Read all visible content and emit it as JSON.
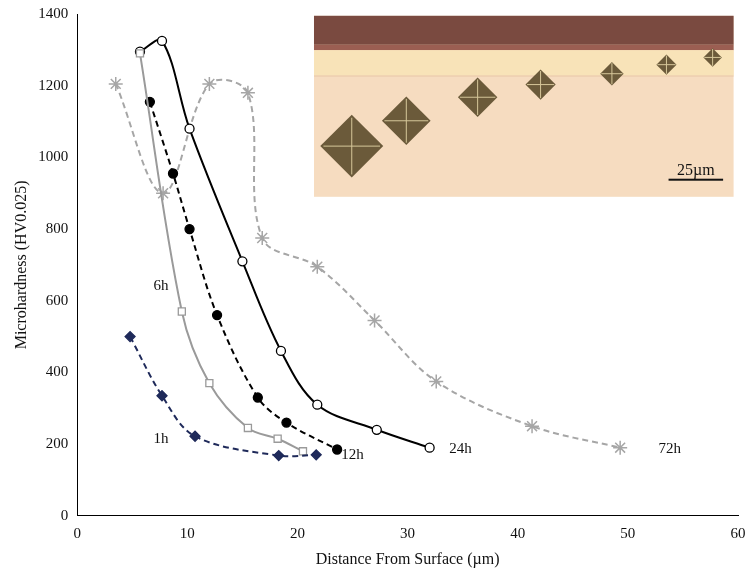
{
  "chart_data": {
    "type": "line",
    "x_label": "Distance From Surface (µm)",
    "y_label": "Microhardness (HV0.025)",
    "xlim": [
      0,
      60
    ],
    "xticks": [
      0,
      10,
      20,
      30,
      40,
      50,
      60
    ],
    "ylim": [
      0,
      1400
    ],
    "yticks": [
      0,
      200,
      400,
      600,
      800,
      1000,
      1200,
      1400
    ],
    "grid": false,
    "series": [
      {
        "name": "1h",
        "color": "#1f2a5a",
        "marker": "diamond",
        "line_style": "dashed",
        "x": [
          4.8,
          7.7,
          10.7,
          18.3,
          21.7
        ],
        "values": [
          500,
          335,
          222,
          168,
          170
        ]
      },
      {
        "name": "6h",
        "color": "#9a9a9a",
        "marker": "square_open",
        "line_style": "solid",
        "x": [
          5.7,
          9.5,
          12.0,
          15.5,
          18.2,
          20.5
        ],
        "values": [
          1290,
          570,
          370,
          245,
          215,
          180
        ]
      },
      {
        "name": "12h",
        "color": "#000000",
        "marker": "circle",
        "line_style": "dashed",
        "x": [
          6.6,
          8.7,
          10.2,
          12.7,
          16.4,
          19.0,
          23.6
        ],
        "values": [
          1155,
          955,
          800,
          560,
          330,
          260,
          185
        ]
      },
      {
        "name": "24h",
        "color": "#000000",
        "marker": "circle_open",
        "line_style": "solid",
        "x": [
          5.7,
          7.7,
          10.2,
          15.0,
          18.5,
          21.8,
          27.2,
          32.0
        ],
        "values": [
          1295,
          1325,
          1080,
          710,
          460,
          310,
          240,
          190
        ]
      },
      {
        "name": "72h",
        "color": "#a6a6a6",
        "marker": "asterisk",
        "line_style": "dashed",
        "x": [
          3.5,
          7.8,
          12.0,
          15.5,
          16.8,
          21.8,
          27.0,
          32.6,
          41.3,
          49.3
        ],
        "values": [
          1205,
          900,
          1205,
          1180,
          775,
          695,
          545,
          375,
          250,
          190
        ]
      }
    ],
    "annotations": [
      {
        "text": "1h",
        "x": 7.6,
        "y": 215
      },
      {
        "text": "6h",
        "x": 7.6,
        "y": 640
      },
      {
        "text": "12h",
        "x": 25.0,
        "y": 170
      },
      {
        "text": "24h",
        "x": 34.8,
        "y": 185
      },
      {
        "text": "72h",
        "x": 53.8,
        "y": 185
      }
    ],
    "inset": {
      "scale_bar_label": "25µm"
    }
  }
}
